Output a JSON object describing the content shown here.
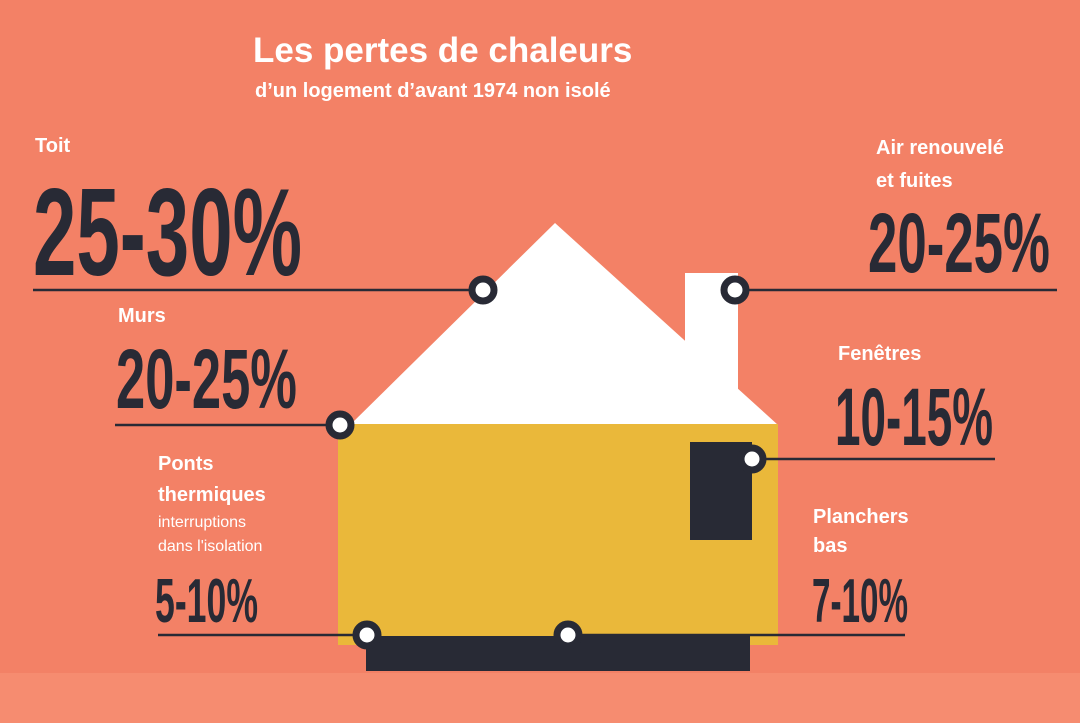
{
  "title": "Les pertes de chaleurs",
  "subtitle": "d’un logement d’avant 1974 non isolé",
  "colors": {
    "background": "#F38166",
    "bottom_band": "#F68C70",
    "dark": "#282A35",
    "house_wall": "#EAB83A",
    "roof": "#FFFFFF"
  },
  "losses": {
    "toit": {
      "label": "Toit",
      "value": "25-30%"
    },
    "air": {
      "label_line1": "Air renouvelé",
      "label_line2": "et fuites",
      "value": "20-25%"
    },
    "murs": {
      "label": "Murs",
      "value": "20-25%"
    },
    "fenetres": {
      "label": "Fenêtres",
      "value": "10-15%"
    },
    "ponts": {
      "label_line1": "Ponts",
      "label_line2": "thermiques",
      "note_line1": "interruptions",
      "note_line2": "dans l'isolation",
      "value": "5-10%"
    },
    "planchers": {
      "label_line1": "Planchers",
      "label_line2": "bas",
      "value": "7-10%"
    }
  }
}
